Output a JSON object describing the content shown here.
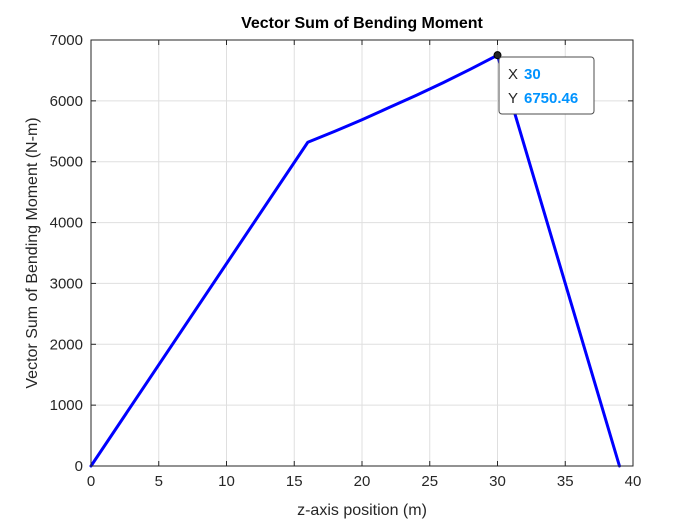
{
  "chart_data": {
    "type": "line",
    "title": "Vector Sum of Bending Moment",
    "xlabel": "z-axis position (m)",
    "ylabel": "Vector Sum of Bending Moment (N-m)",
    "xlim": [
      0,
      40
    ],
    "ylim": [
      0,
      7000
    ],
    "xticks": [
      0,
      5,
      10,
      15,
      20,
      25,
      30,
      35,
      40
    ],
    "yticks": [
      0,
      1000,
      2000,
      3000,
      4000,
      5000,
      6000,
      7000
    ],
    "grid": true,
    "series": [
      {
        "color": "#0000ff",
        "x": [
          0,
          16,
          18,
          20,
          22,
          24,
          26,
          28,
          30,
          39
        ],
        "y": [
          0,
          5320,
          5500,
          5690,
          5890,
          6090,
          6300,
          6520,
          6750.46,
          0
        ]
      }
    ],
    "datatip": {
      "x_key": "X",
      "x_value": "30",
      "y_key": "Y",
      "y_value": "6750.46",
      "point_x": 30,
      "point_y": 6750.46,
      "value_color": "#0093ff"
    }
  }
}
